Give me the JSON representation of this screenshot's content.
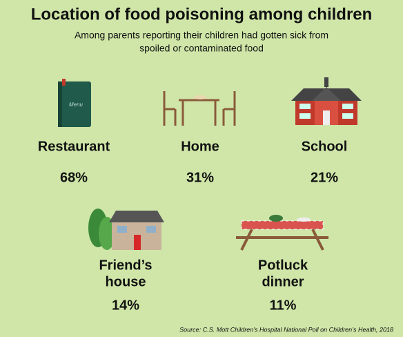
{
  "header": {
    "title": "Location of food poisoning among children",
    "subtitle": [
      "Among parents reporting their children had gotten sick from",
      "spoiled or contaminated food"
    ]
  },
  "items": [
    {
      "label": [
        "Restaurant"
      ],
      "value": "68%"
    },
    {
      "label": [
        "Home"
      ],
      "value": "31%"
    },
    {
      "label": [
        "School"
      ],
      "value": "21%"
    },
    {
      "label": [
        "Friend’s",
        "house"
      ],
      "value": "14%"
    },
    {
      "label": [
        "Potluck",
        "dinner"
      ],
      "value": "11%"
    }
  ],
  "icon_text": "Menu",
  "source": "Source: C.S. Mott Children’s Hospital National Poll on Children’s Health, 2018"
}
